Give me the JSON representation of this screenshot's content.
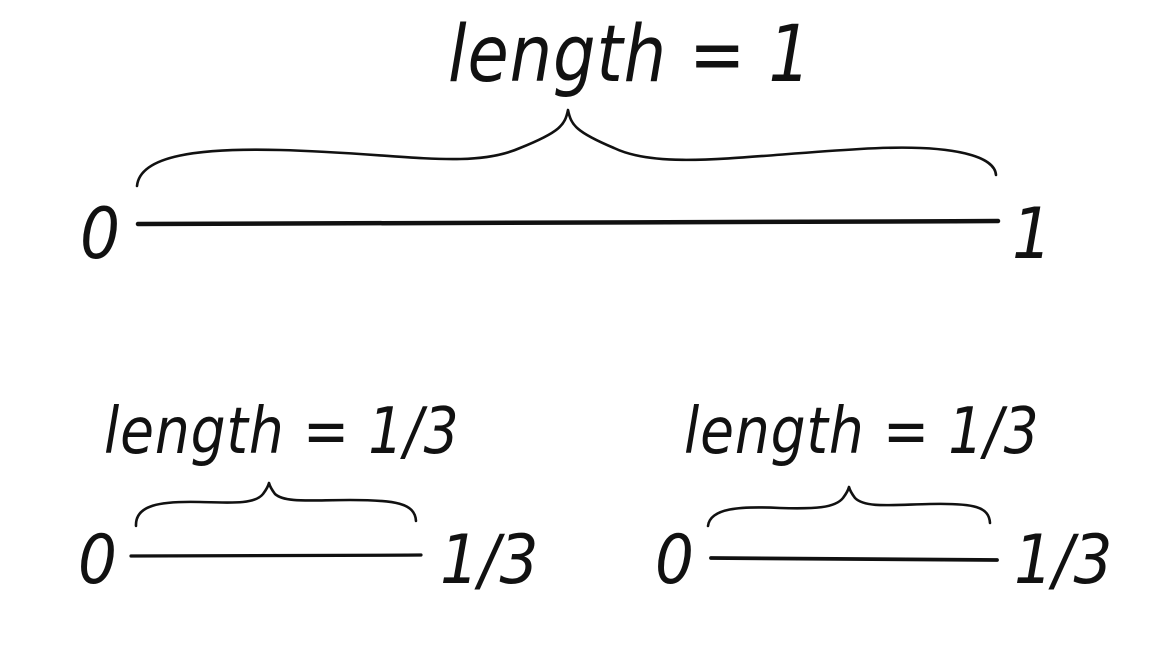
{
  "top": {
    "label": "length = 1",
    "start": "0",
    "end": "1"
  },
  "bottom_left": {
    "label": "length = 1/3",
    "start": "0",
    "end": "1/3"
  },
  "bottom_right": {
    "label": "length = 1/3",
    "start": "0",
    "end": "1/3"
  }
}
